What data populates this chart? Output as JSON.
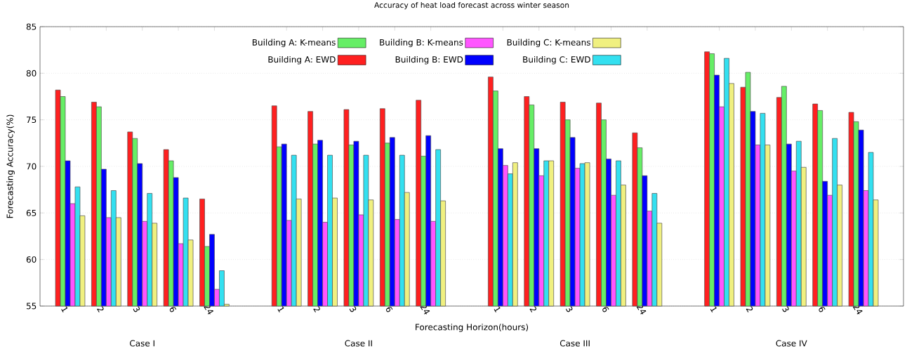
{
  "chart_data": {
    "type": "bar",
    "title": "Accuracy of heat load forecast across winter season",
    "xlabel": "Forecasting Horizon(hours)",
    "ylabel": "Forecasting Accuracy(%)",
    "categories": [
      "1",
      "2",
      "3",
      "6",
      "24",
      null,
      "1",
      "2",
      "3",
      "6",
      "24",
      null,
      "1",
      "2",
      "3",
      "6",
      "24",
      null,
      "1",
      "2",
      "3",
      "6",
      "24"
    ],
    "series": [
      {
        "name": "Building A: EWD",
        "color": "#ff2020",
        "values": [
          78.2,
          76.9,
          73.7,
          71.8,
          66.5,
          null,
          76.5,
          75.9,
          76.1,
          76.2,
          77.1,
          null,
          79.6,
          77.5,
          76.9,
          76.8,
          73.6,
          null,
          82.3,
          78.5,
          77.4,
          76.7,
          75.8
        ]
      },
      {
        "name": "Building A: K-means",
        "color": "#66ee66",
        "values": [
          77.5,
          76.4,
          73.0,
          70.6,
          61.4,
          null,
          72.1,
          72.4,
          72.3,
          72.5,
          71.1,
          null,
          78.1,
          76.6,
          75.0,
          75.0,
          72.0,
          null,
          82.1,
          80.1,
          78.6,
          76.0,
          74.8
        ]
      },
      {
        "name": "Building B: EWD",
        "color": "#0000ff",
        "values": [
          70.6,
          69.7,
          70.3,
          68.8,
          62.7,
          null,
          72.4,
          72.8,
          72.7,
          73.1,
          73.3,
          null,
          71.9,
          71.9,
          73.1,
          70.8,
          69.0,
          null,
          79.8,
          75.9,
          72.4,
          68.4,
          73.9
        ]
      },
      {
        "name": "Building B: K-means",
        "color": "#ff55ff",
        "values": [
          66.0,
          64.5,
          64.1,
          61.7,
          56.8,
          null,
          64.2,
          64.0,
          64.8,
          64.3,
          64.1,
          null,
          70.1,
          69.0,
          69.8,
          66.9,
          65.2,
          null,
          76.4,
          72.3,
          69.5,
          66.9,
          67.4
        ]
      },
      {
        "name": "Building C: EWD",
        "color": "#33e0f0",
        "values": [
          67.8,
          67.4,
          67.1,
          66.6,
          58.8,
          null,
          71.2,
          71.2,
          71.2,
          71.2,
          71.8,
          null,
          69.2,
          70.6,
          70.3,
          70.6,
          67.1,
          null,
          81.6,
          75.7,
          72.7,
          73.0,
          71.5
        ]
      },
      {
        "name": "Building C: K-means",
        "color": "#f0f080",
        "values": [
          64.7,
          64.5,
          63.9,
          62.1,
          55.2,
          null,
          66.5,
          66.6,
          66.4,
          67.2,
          66.3,
          null,
          70.4,
          70.6,
          70.4,
          68.0,
          63.9,
          null,
          78.9,
          72.3,
          69.9,
          68.0,
          66.4
        ]
      }
    ],
    "ylim": [
      55,
      85
    ],
    "yticks": [
      55,
      60,
      65,
      70,
      75,
      80,
      85
    ],
    "grid": "y",
    "legend": "top",
    "annotations": [
      "Case I",
      "Case II",
      "Case III",
      "Case IV"
    ]
  }
}
